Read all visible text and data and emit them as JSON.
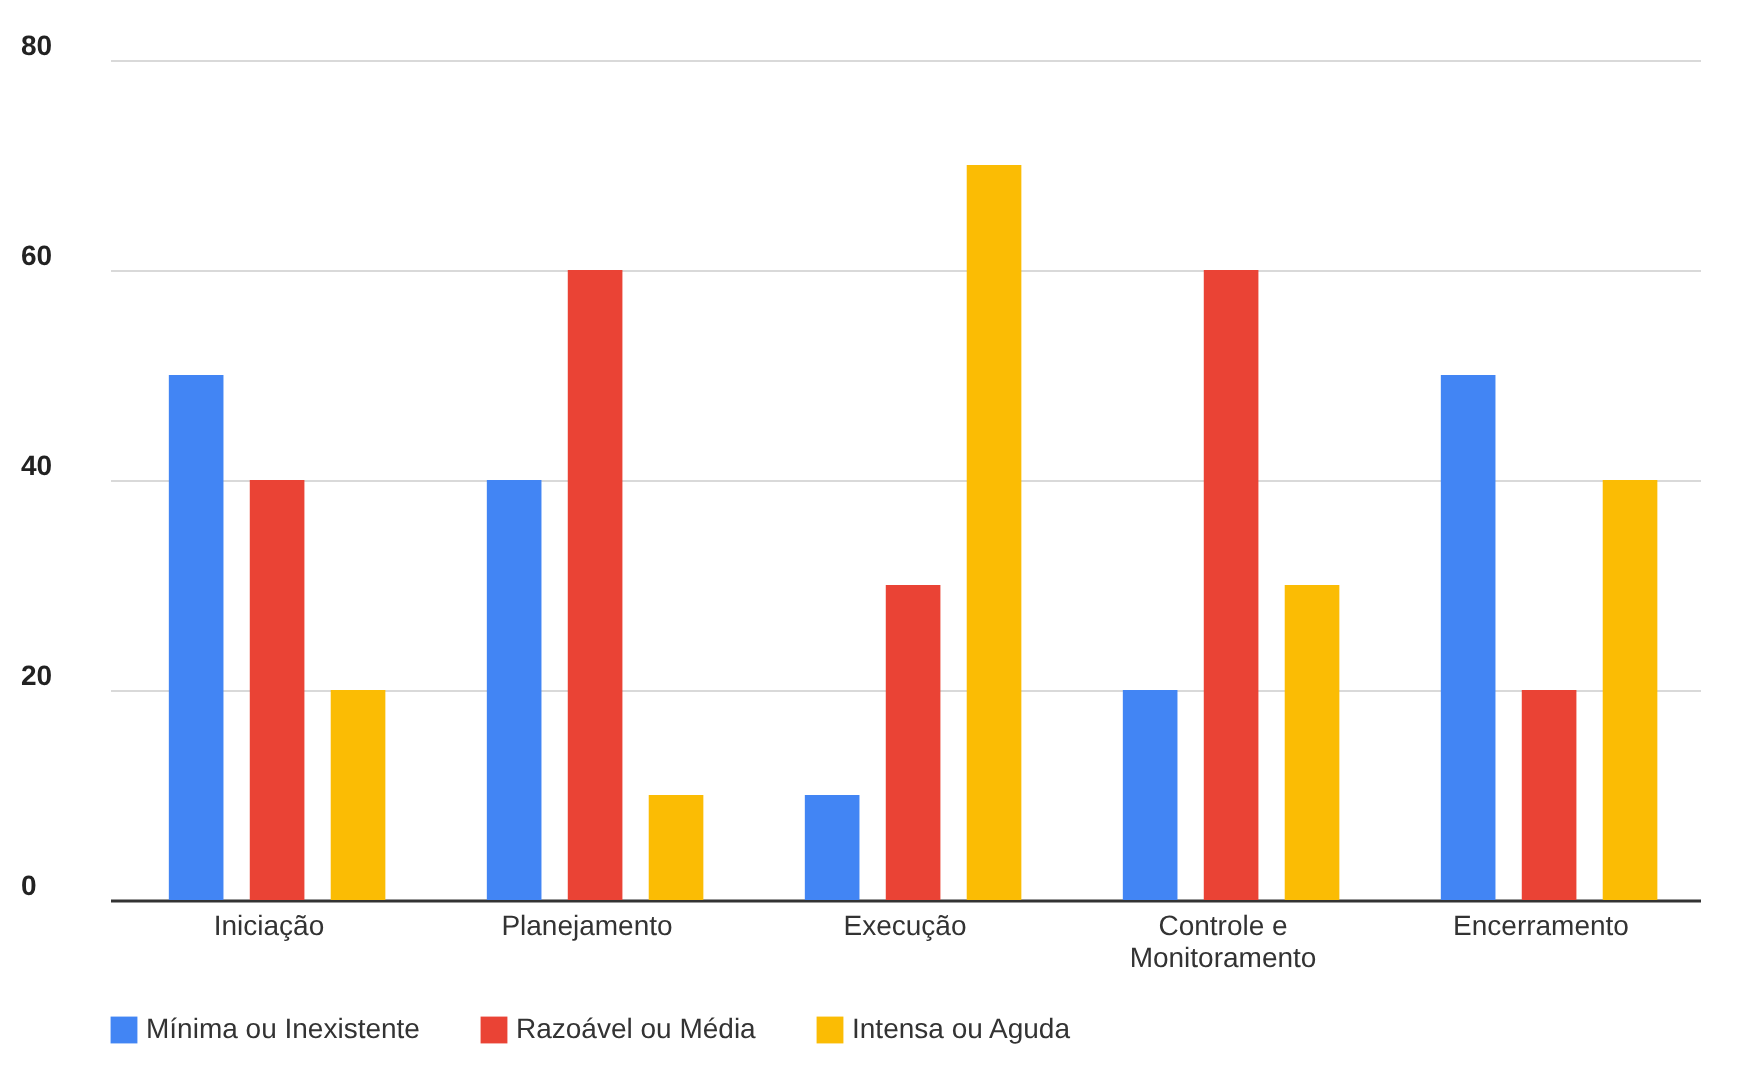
{
  "chart_data": {
    "type": "bar",
    "categories": [
      "Iniciação",
      "Planejamento",
      "Execução",
      "Controle e Monitoramento",
      "Encerramento"
    ],
    "series": [
      {
        "name": "Mínima ou Inexistente",
        "color": "#4285f4",
        "values": [
          50,
          40,
          10,
          20,
          50
        ]
      },
      {
        "name": "Razoável ou Média",
        "color": "#ea4335",
        "values": [
          40,
          60,
          30,
          60,
          20
        ]
      },
      {
        "name": "Intensa ou Aguda",
        "color": "#fbbc04",
        "values": [
          20,
          10,
          70,
          30,
          40
        ]
      }
    ],
    "ylim": [
      0,
      80
    ],
    "yticks": [
      0,
      20,
      40,
      60,
      80
    ],
    "grid": "y",
    "legend": "bottom"
  }
}
